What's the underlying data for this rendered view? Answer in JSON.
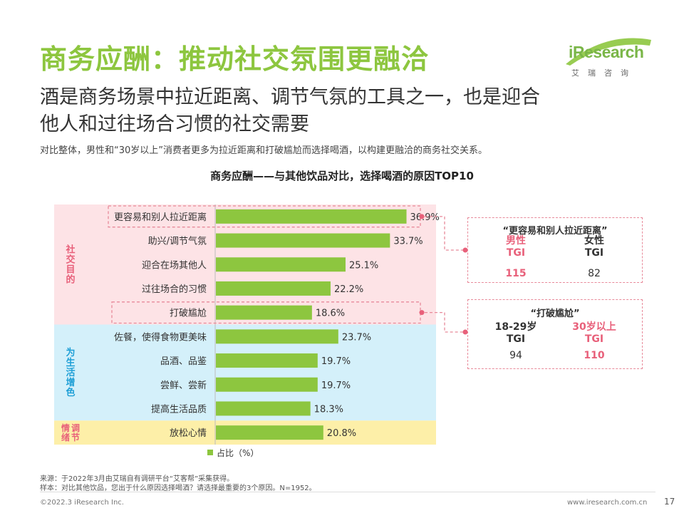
{
  "header": {
    "title": "商务应酬：推动社交氛围更融洽",
    "subtitle_line1": "酒是商务场景中拉近距离、调节气氛的工具之一，也是迎合",
    "subtitle_line2": "他人和过往场合习惯的社交需要",
    "description": "对比整体，男性和“30岁以上”消费者更多为拉近距离和打破尴尬而选择喝酒，以构建更融洽的商务社交关系。"
  },
  "logo": {
    "brand": "iResearch",
    "sub": "艾瑞咨询",
    "color": "#7ab648"
  },
  "chart_data": {
    "type": "bar",
    "orientation": "horizontal",
    "title": "商务应酬——与其他饮品对比，选择喝酒的原因TOP10",
    "categories": [
      "更容易和别人拉近距离",
      "助兴/调节气氛",
      "迎合在场其他人",
      "过往场合的习惯",
      "打破尴尬",
      "佐餐，使得食物更美味",
      "品酒、品鉴",
      "尝鲜、尝新",
      "提高生活品质",
      "放松心情"
    ],
    "values": [
      36.9,
      33.7,
      25.1,
      22.2,
      18.6,
      23.7,
      19.7,
      19.7,
      18.3,
      20.8
    ],
    "value_labels": [
      "36.9%",
      "33.7%",
      "25.1%",
      "22.2%",
      "18.6%",
      "23.7%",
      "19.7%",
      "19.7%",
      "18.3%",
      "20.8%"
    ],
    "unit": "%",
    "legend": "占比（%）",
    "bar_color": "#8dc63f",
    "xlim": [
      0,
      40
    ],
    "groups": [
      {
        "label": "社交目的",
        "start": 0,
        "end": 4,
        "bg": "#fde3e6",
        "label_color": "#e8607a"
      },
      {
        "label": "为生活增色",
        "start": 5,
        "end": 8,
        "bg": "#d4f0fa",
        "label_color": "#1e9fd6"
      },
      {
        "label": "调节情绪",
        "start": 9,
        "end": 9,
        "bg": "#fdefa8",
        "label_color": "#e8607a"
      }
    ],
    "highlighted": [
      0,
      4
    ]
  },
  "tgi_panels": [
    {
      "title": "“更容易和别人拉近距离”",
      "left": {
        "name": "男性",
        "metric": "TGI",
        "value": "115",
        "highlight": true
      },
      "right": {
        "name": "女性",
        "metric": "TGI",
        "value": "82",
        "highlight": false
      }
    },
    {
      "title": "“打破尴尬”",
      "left": {
        "name": "18-29岁",
        "metric": "TGI",
        "value": "94",
        "highlight": false
      },
      "right": {
        "name": "30岁以上",
        "metric": "TGI",
        "value": "110",
        "highlight": true
      }
    }
  ],
  "footer": {
    "source": "来源：于2022年3月由艾瑞自有调研平台“艾客帮”采集获得。",
    "sample": "样本：对比其他饮品，您出于什么原因选择喝酒？请选择最重要的3个原因。N=1952。",
    "copyright": "©2022.3 iResearch Inc.",
    "url": "www.iresearch.com.cn",
    "page": "17"
  },
  "colors": {
    "title_green": "#8dc63f",
    "highlight_red": "#e8607a",
    "dash_pink": "#e88a9a"
  }
}
